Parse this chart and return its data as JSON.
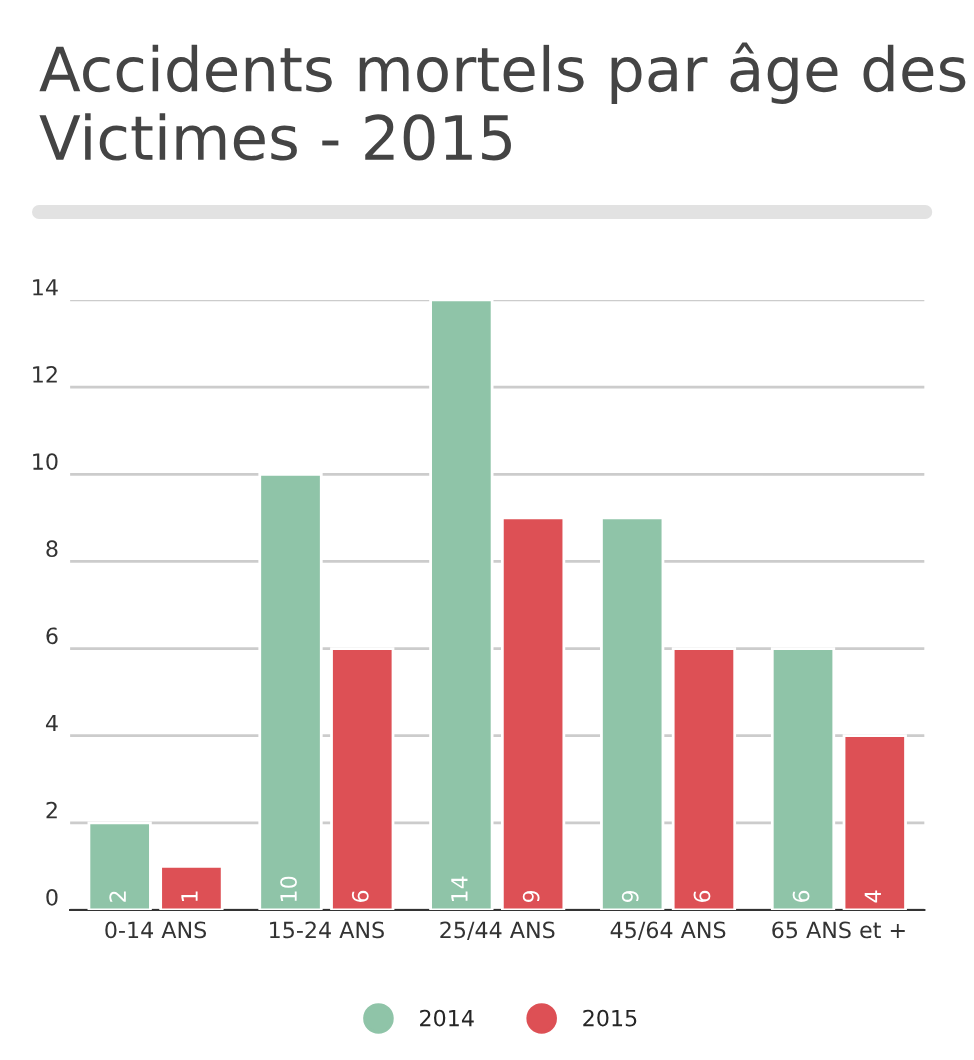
{
  "chart_data": {
    "type": "bar",
    "title": "Accidents mortels par âge des Victimes - 2015",
    "categories": [
      "0-14 ANS",
      "15-24 ANS",
      "25/44 ANS",
      "45/64 ANS",
      "65 ANS et +"
    ],
    "series": [
      {
        "name": "2014",
        "color": "#8fc4a8",
        "values": [
          2,
          10,
          14,
          9,
          6
        ]
      },
      {
        "name": "2015",
        "color": "#dd5055",
        "values": [
          1,
          6,
          9,
          6,
          4
        ]
      }
    ],
    "ylim": [
      0,
      14
    ],
    "yticks": [
      0,
      2,
      4,
      6,
      8,
      10,
      12,
      14
    ],
    "grid": "y",
    "legend": "bottom",
    "data_labels": true
  }
}
